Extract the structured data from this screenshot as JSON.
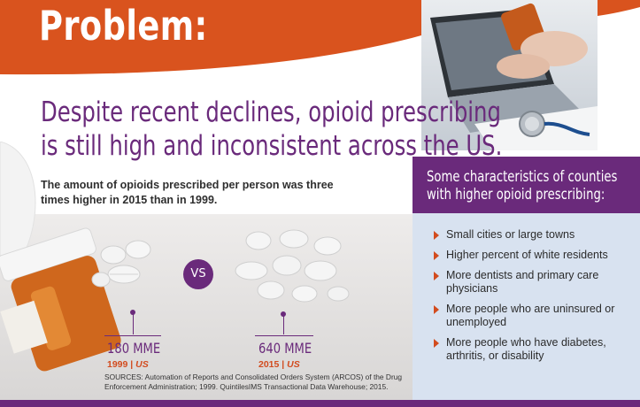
{
  "header": {
    "title": "Problem:"
  },
  "headline": {
    "line1": "Despite recent declines, opioid prescribing",
    "line2": "is still high and inconsistent across the US."
  },
  "lead": {
    "text": "The amount of opioids prescribed per person was three times higher in 2015 than in 1999."
  },
  "comparison": {
    "vs_label": "VS",
    "left": {
      "value": "180 MME",
      "year": "1999",
      "separator": "|",
      "region": "US"
    },
    "right": {
      "value": "640 MME",
      "year": "2015",
      "separator": "|",
      "region": "US"
    }
  },
  "sources": {
    "text": "SOURCES: Automation of Reports and Consolidated Orders System (ARCOS) of the Drug Enforcement Administration; 1999. QuintilesIMS Transactional Data Warehouse; 2015."
  },
  "characteristics": {
    "title": "Some characteristics of counties with higher opioid prescribing:",
    "items": [
      "Small cities or large towns",
      "Higher percent of white residents",
      "More dentists and primary care physicians",
      "More people who are uninsured or unemployed",
      "More people who have diabetes, arthritis, or disability"
    ]
  },
  "colors": {
    "accent_orange": "#d9531e",
    "brand_purple": "#6a2a7b",
    "panel_blue": "#d8e2f0"
  }
}
